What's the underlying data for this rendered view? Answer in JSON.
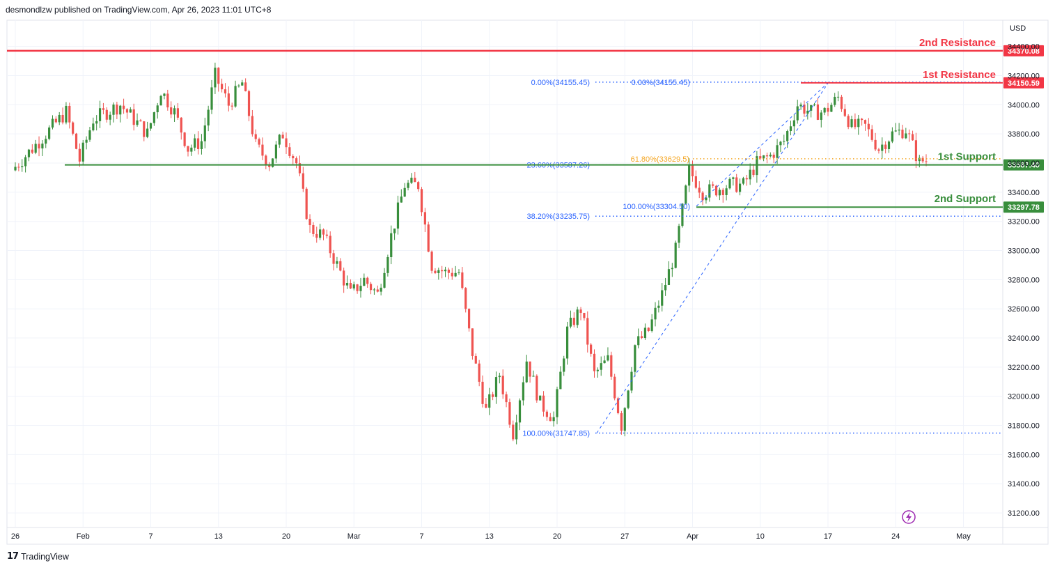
{
  "header": {
    "published": "desmondlzw published on TradingView.com, Apr 26, 2023 11:01 UTC+8"
  },
  "footer": {
    "logo": "17",
    "brand": "TradingView"
  },
  "colors": {
    "up": "#26a69a",
    "up_dark": "#388e3c",
    "down": "#ef5350",
    "resistance": "#f23645",
    "support": "#388e3c",
    "fib": "#2962ff",
    "fib_gold": "#f5a623",
    "grid": "#f0f3fa"
  },
  "chart_data": {
    "type": "candlestick",
    "currency": "USD",
    "ylim": [
      31100,
      34580
    ],
    "yticks": [
      31200,
      31400,
      31600,
      31800,
      32000,
      32200,
      32400,
      32600,
      32800,
      33000,
      33200,
      33400,
      33600,
      33800,
      34000,
      34200,
      34400
    ],
    "ytick_labels": [
      "31200.00",
      "31400.00",
      "31600.00",
      "31800.00",
      "32000.00",
      "32200.00",
      "32400.00",
      "32600.00",
      "32800.00",
      "33000.00",
      "33200.00",
      "33400.00",
      "33600.00",
      "33800.00",
      "34000.00",
      "34200.00",
      "34400.00"
    ],
    "xtick_labels": [
      "26",
      "Feb",
      "7",
      "13",
      "20",
      "Mar",
      "7",
      "13",
      "20",
      "27",
      "Apr",
      "10",
      "17",
      "24",
      "May"
    ],
    "xtick_pos": [
      0,
      5,
      10,
      15,
      20,
      25,
      30,
      35,
      40,
      45,
      50,
      55,
      60,
      65,
      70
    ],
    "x_positions_note_removed": true,
    "levels": [
      {
        "id": "res2",
        "label": "2nd Resistance",
        "price": 34370.08,
        "price_label": "34370.08",
        "kind": "resistance"
      },
      {
        "id": "res1",
        "label": "1st Resistance",
        "price": 34150.59,
        "price_label": "34150.59",
        "kind": "resistance"
      },
      {
        "id": "sup1",
        "label": "1st Support",
        "price": 33587.4,
        "price_label": "33587.40",
        "kind": "support"
      },
      {
        "id": "sup2",
        "label": "2nd Support",
        "price": 33297.78,
        "price_label": "33297.78",
        "kind": "support"
      }
    ],
    "fib_labels": [
      {
        "text": "0.00%(34155.45)",
        "price": 34155.45
      },
      {
        "text": "0.00%(34155.45)",
        "price": 34155.45
      },
      {
        "text": "23.60%(33587.26)",
        "price": 33587.26
      },
      {
        "text": "61.80%(33629.5)",
        "price": 33629.5
      },
      {
        "text": "100.00%(33304.50)",
        "price": 33304.5
      },
      {
        "text": "38.20%(33235.75)",
        "price": 33235.75
      },
      {
        "text": "100.00%(31747.85)",
        "price": 31747.85
      }
    ],
    "anchors": [
      {
        "day": 0,
        "price": 33550
      },
      {
        "day": 2,
        "price": 33750
      },
      {
        "day": 4,
        "price": 33950
      },
      {
        "day": 5,
        "price": 33620
      },
      {
        "day": 6,
        "price": 33900
      },
      {
        "day": 8,
        "price": 34000
      },
      {
        "day": 10,
        "price": 33800
      },
      {
        "day": 11,
        "price": 34100
      },
      {
        "day": 12,
        "price": 33950
      },
      {
        "day": 13,
        "price": 33700
      },
      {
        "day": 14,
        "price": 33750
      },
      {
        "day": 15,
        "price": 34200
      },
      {
        "day": 16,
        "price": 34000
      },
      {
        "day": 17,
        "price": 34150
      },
      {
        "day": 18,
        "price": 33720
      },
      {
        "day": 19,
        "price": 33600
      },
      {
        "day": 20,
        "price": 33800
      },
      {
        "day": 21,
        "price": 33600
      },
      {
        "day": 22,
        "price": 33150
      },
      {
        "day": 23,
        "price": 33100
      },
      {
        "day": 24,
        "price": 32900
      },
      {
        "day": 25,
        "price": 32700
      },
      {
        "day": 26,
        "price": 32800
      },
      {
        "day": 27,
        "price": 32700
      },
      {
        "day": 28,
        "price": 33100
      },
      {
        "day": 29,
        "price": 33450
      },
      {
        "day": 30,
        "price": 33450
      },
      {
        "day": 31,
        "price": 32900
      },
      {
        "day": 32,
        "price": 32850
      },
      {
        "day": 33,
        "price": 32850
      },
      {
        "day": 34,
        "price": 32300
      },
      {
        "day": 35,
        "price": 31900
      },
      {
        "day": 36,
        "price": 32150
      },
      {
        "day": 37,
        "price": 31750
      },
      {
        "day": 38,
        "price": 32250
      },
      {
        "day": 39,
        "price": 31950
      },
      {
        "day": 40,
        "price": 31850
      },
      {
        "day": 41,
        "price": 32450
      },
      {
        "day": 42,
        "price": 32600
      },
      {
        "day": 43,
        "price": 32150
      },
      {
        "day": 44,
        "price": 32250
      },
      {
        "day": 45,
        "price": 31800
      },
      {
        "day": 46,
        "price": 32350
      },
      {
        "day": 47,
        "price": 32450
      },
      {
        "day": 48,
        "price": 32700
      },
      {
        "day": 49,
        "price": 33000
      },
      {
        "day": 50,
        "price": 33550
      },
      {
        "day": 51,
        "price": 33400
      },
      {
        "day": 52,
        "price": 33420
      },
      {
        "day": 53,
        "price": 33450
      },
      {
        "day": 54,
        "price": 33450
      },
      {
        "day": 55,
        "price": 33600
      },
      {
        "day": 56,
        "price": 33650
      },
      {
        "day": 57,
        "price": 33750
      },
      {
        "day": 58,
        "price": 34000
      },
      {
        "day": 59,
        "price": 33950
      },
      {
        "day": 60,
        "price": 33950
      },
      {
        "day": 61,
        "price": 34050
      },
      {
        "day": 62,
        "price": 33850
      },
      {
        "day": 63,
        "price": 33850
      },
      {
        "day": 64,
        "price": 33700
      },
      {
        "day": 65,
        "price": 33800
      },
      {
        "day": 66,
        "price": 33830
      },
      {
        "day": 67,
        "price": 33600
      },
      {
        "day": 67.3,
        "price": 33620
      }
    ]
  }
}
